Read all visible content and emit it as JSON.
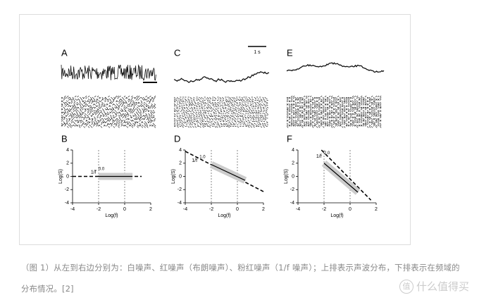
{
  "top_panels": [
    {
      "label": "A"
    },
    {
      "label": "C",
      "scale_bar": "1 s"
    },
    {
      "label": "E"
    }
  ],
  "chart_data": [
    {
      "type": "line",
      "title": "B",
      "x_label": "Log(f)",
      "y_label": "Log(S)",
      "annotation": "1/f",
      "exponent": "0.0",
      "xlim": [
        -4,
        2
      ],
      "ylim": [
        -4,
        4
      ],
      "xticks": [
        -4,
        -2,
        0,
        2
      ],
      "yticks": [
        -4,
        -2,
        0,
        2,
        4
      ],
      "vlines": [
        -2,
        0
      ],
      "series": [
        {
          "style": "dashed",
          "color": "#000000",
          "x": [
            -4,
            1.3
          ],
          "values": [
            0,
            0
          ]
        },
        {
          "style": "solid",
          "color": "#000000",
          "x": [
            -2,
            0.6
          ],
          "values": [
            0,
            0
          ]
        }
      ]
    },
    {
      "type": "line",
      "title": "D",
      "x_label": "Log(f)",
      "y_label": "Log(S)",
      "annotation": "1/f",
      "exponent": "1.0",
      "xlim": [
        -4,
        2
      ],
      "ylim": [
        -4,
        4
      ],
      "xticks": [
        -4,
        -2,
        0,
        2
      ],
      "yticks": [
        -4,
        -2,
        0,
        2,
        4
      ],
      "vlines": [
        -2,
        0
      ],
      "series": [
        {
          "style": "dashed",
          "color": "#000000",
          "x": [
            -4,
            2
          ],
          "values": [
            3.8,
            -2.3
          ]
        },
        {
          "style": "solid",
          "color": "#000000",
          "x": [
            -2,
            0.6
          ],
          "values": [
            1.8,
            -0.6
          ]
        }
      ]
    },
    {
      "type": "line",
      "title": "F",
      "x_label": "Log(f)",
      "y_label": "Log(S)",
      "annotation": "1/f",
      "exponent": "2.0",
      "xlim": [
        -4,
        2
      ],
      "ylim": [
        -4,
        4
      ],
      "xticks": [
        -4,
        -2,
        0,
        2
      ],
      "yticks": [
        -4,
        -2,
        0,
        2,
        4
      ],
      "vlines": [
        -2,
        0
      ],
      "series": [
        {
          "style": "dashed",
          "color": "#000000",
          "x": [
            -2.2,
            1.6
          ],
          "values": [
            4,
            -3.6
          ]
        },
        {
          "style": "solid",
          "color": "#000000",
          "x": [
            -2,
            0.6
          ],
          "values": [
            2,
            -2.4
          ]
        }
      ]
    }
  ],
  "caption": "（图 1）从左到右边分别为：白噪声、红噪声（布朗噪声）、粉红噪声（1/f 噪声）；上排表示声波分布，下排表示在频域的分布情况。[2]",
  "watermark": {
    "icon": "值",
    "text": "什么值得买"
  }
}
